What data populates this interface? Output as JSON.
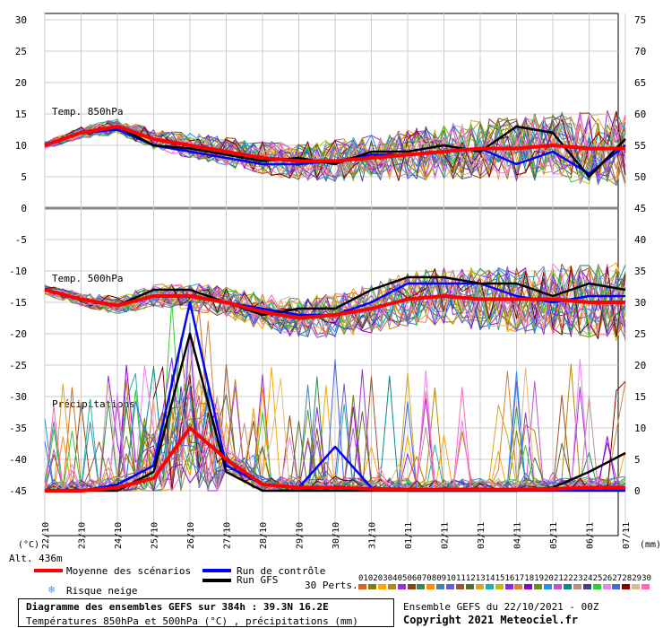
{
  "chart_data": {
    "type": "line",
    "x": [
      "22/10",
      "23/10",
      "24/10",
      "25/10",
      "26/10",
      "27/10",
      "28/10",
      "29/10",
      "30/10",
      "31/10",
      "01/11",
      "02/11",
      "03/11",
      "04/11",
      "05/11",
      "06/11",
      "07/11"
    ],
    "y_left_ticks": [
      "30",
      "25",
      "20",
      "15",
      "10",
      "5",
      "0",
      "-5",
      "-10",
      "-15",
      "-20",
      "-25",
      "-30",
      "-35",
      "-40",
      "-45"
    ],
    "y_right_ticks": [
      "75",
      "70",
      "65",
      "60",
      "55",
      "50",
      "45",
      "40",
      "35",
      "30",
      "25",
      "20",
      "15",
      "10",
      "5",
      "0"
    ],
    "ylim_left": [
      -45,
      30
    ],
    "ylim_right": [
      0,
      75
    ],
    "panels": {
      "t850": {
        "label": "Temp. 850hPa",
        "mean": [
          10,
          12,
          13,
          11,
          10,
          9,
          8,
          7.5,
          7.5,
          8,
          8.5,
          9,
          9.5,
          9.5,
          10,
          9.5,
          9.5
        ],
        "control": [
          10,
          12,
          12.5,
          10,
          9,
          8,
          7,
          7,
          7.5,
          8.5,
          8.5,
          9,
          9.5,
          7,
          9,
          5.5,
          10
        ],
        "gfs": [
          10,
          12,
          13,
          10,
          9.5,
          8.5,
          7.5,
          8,
          7,
          9,
          9,
          10,
          9,
          13,
          12,
          5,
          11
        ]
      },
      "t500": {
        "label": "Temp. 500hPa",
        "mean": [
          -13,
          -14.5,
          -15.5,
          -14,
          -14,
          -15,
          -16.5,
          -17.5,
          -17,
          -16,
          -14.5,
          -14,
          -14.5,
          -14.5,
          -14.5,
          -15,
          -15
        ],
        "control": [
          -13,
          -14.5,
          -15.5,
          -14,
          -14,
          -15,
          -16,
          -17,
          -17,
          -15,
          -12,
          -12,
          -12,
          -14,
          -15,
          -14,
          -14
        ],
        "gfs": [
          -13,
          -14.5,
          -15.5,
          -13,
          -13,
          -15,
          -17,
          -16,
          -16,
          -13,
          -11,
          -11,
          -12,
          -12,
          -14,
          -12,
          -13
        ]
      },
      "precip": {
        "label": "Précipitations",
        "unit": "mm",
        "mean": [
          0,
          0,
          0.5,
          2,
          10,
          5,
          1,
          0.5,
          0.5,
          0.3,
          0.2,
          0.2,
          0.2,
          0.2,
          0.3,
          0.5,
          0.5
        ],
        "control": [
          0,
          0,
          1,
          4,
          30,
          4,
          1,
          0.5,
          7,
          0.5,
          0,
          0,
          0,
          0,
          0,
          0,
          0
        ],
        "gfs": [
          0,
          0,
          0,
          3,
          25,
          3,
          0,
          0,
          0,
          0,
          0,
          0,
          0,
          0,
          0.5,
          3,
          6
        ]
      }
    },
    "members_count": 30,
    "axis_unit_left": "(°C)",
    "axis_unit_right": "(mm)"
  },
  "labels": {
    "alt": "Alt. 436m",
    "mean": "Moyenne des scénarios",
    "control": "Run de contrôle",
    "gfs": "Run GFS",
    "snow": "Risque neige",
    "perts": "30 Perts.",
    "title": "Diagramme des ensembles GEFS sur 384h : 39.3N 16.2E",
    "subtitle": "Températures 850hPa et 500hPa (°C) , précipitations (mm)",
    "ensemble": "Ensemble GEFS du 22/10/2021 - 00Z",
    "copyright": "Copyright 2021 Meteociel.fr"
  },
  "pert_numbers": [
    "01",
    "02",
    "03",
    "04",
    "05",
    "06",
    "07",
    "08",
    "09",
    "10",
    "11",
    "12",
    "13",
    "14",
    "15",
    "16",
    "17",
    "18",
    "19",
    "20",
    "21",
    "22",
    "23",
    "24",
    "25",
    "26",
    "27",
    "28",
    "29",
    "30"
  ],
  "colors": {
    "mean": "#ff0000",
    "control": "#0000ff",
    "gfs": "#000000",
    "members": [
      "#d2691e",
      "#808000",
      "#ffa500",
      "#b8860b",
      "#9932cc",
      "#8b4513",
      "#2e8b57",
      "#ff8c00",
      "#4682b4",
      "#6a5acd",
      "#a0522d",
      "#556b2f",
      "#daa520",
      "#20b2aa",
      "#c0c000",
      "#8a2be2",
      "#cd853f",
      "#9400d3",
      "#6b8e23",
      "#1e90ff",
      "#ba55d3",
      "#008b8b",
      "#bc8f8f",
      "#483d8b",
      "#32cd32",
      "#ee82ee",
      "#4169e1",
      "#800000",
      "#deb887",
      "#ff69b4"
    ]
  }
}
